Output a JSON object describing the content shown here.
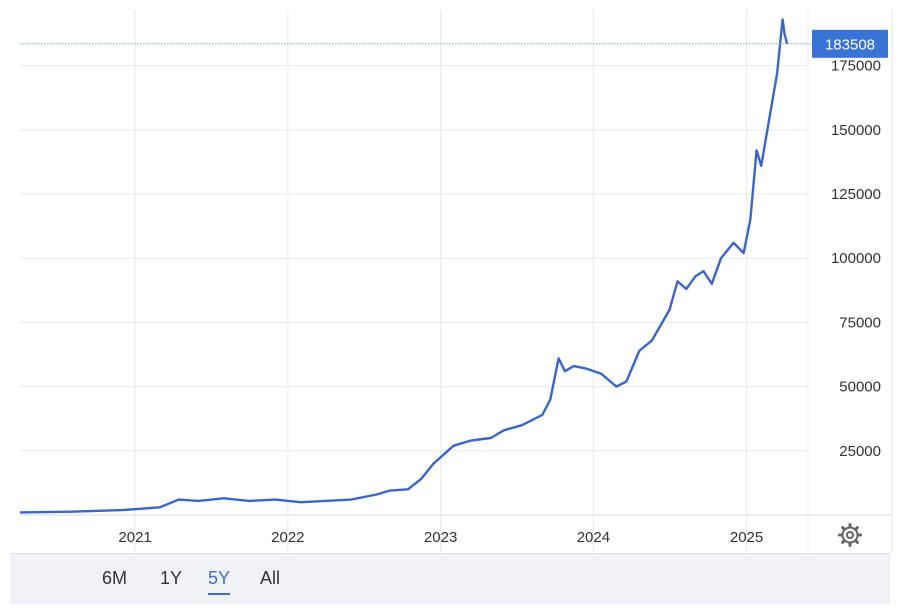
{
  "chart_data": {
    "type": "line",
    "title": "",
    "xlabel": "",
    "ylabel": "",
    "x_ticks": [
      "2021",
      "2022",
      "2023",
      "2024",
      "2025"
    ],
    "y_ticks": [
      "25000",
      "50000",
      "75000",
      "100000",
      "125000",
      "150000",
      "175000"
    ],
    "ylim": [
      0,
      192000
    ],
    "xlim": [
      "2020-04",
      "2025-04"
    ],
    "grid": true,
    "last_value": 183508,
    "last_value_label": "183508",
    "series": [
      {
        "color": "#3a66cc",
        "points": [
          [
            "2020-04-01",
            1000
          ],
          [
            "2020-08-01",
            1300
          ],
          [
            "2020-12-01",
            1900
          ],
          [
            "2021-03-01",
            3000
          ],
          [
            "2021-04-15",
            6000
          ],
          [
            "2021-06-01",
            5500
          ],
          [
            "2021-08-01",
            6500
          ],
          [
            "2021-10-01",
            5500
          ],
          [
            "2021-12-01",
            6000
          ],
          [
            "2022-02-01",
            5000
          ],
          [
            "2022-04-01",
            5500
          ],
          [
            "2022-06-01",
            6000
          ],
          [
            "2022-08-01",
            8000
          ],
          [
            "2022-09-01",
            9500
          ],
          [
            "2022-10-15",
            10000
          ],
          [
            "2022-11-15",
            14000
          ],
          [
            "2022-12-15",
            20000
          ],
          [
            "2023-02-01",
            27000
          ],
          [
            "2023-03-15",
            29000
          ],
          [
            "2023-05-01",
            30000
          ],
          [
            "2023-06-01",
            33000
          ],
          [
            "2023-07-15",
            35000
          ],
          [
            "2023-09-01",
            39000
          ],
          [
            "2023-09-20",
            45000
          ],
          [
            "2023-10-10",
            61000
          ],
          [
            "2023-10-25",
            56000
          ],
          [
            "2023-11-15",
            58000
          ],
          [
            "2023-12-15",
            57000
          ],
          [
            "2024-01-20",
            55000
          ],
          [
            "2024-02-25",
            50000
          ],
          [
            "2024-03-20",
            52000
          ],
          [
            "2024-04-20",
            64000
          ],
          [
            "2024-05-20",
            68000
          ],
          [
            "2024-07-01",
            80000
          ],
          [
            "2024-07-20",
            91000
          ],
          [
            "2024-08-10",
            88000
          ],
          [
            "2024-09-01",
            93000
          ],
          [
            "2024-09-20",
            95000
          ],
          [
            "2024-10-10",
            90000
          ],
          [
            "2024-11-01",
            100000
          ],
          [
            "2024-12-01",
            106000
          ],
          [
            "2024-12-25",
            102000
          ],
          [
            "2025-01-10",
            115000
          ],
          [
            "2025-01-25",
            142000
          ],
          [
            "2025-02-05",
            136000
          ],
          [
            "2025-02-25",
            155000
          ],
          [
            "2025-03-15",
            172000
          ],
          [
            "2025-03-28",
            193000
          ],
          [
            "2025-04-02",
            187000
          ],
          [
            "2025-04-08",
            183508
          ]
        ]
      }
    ]
  },
  "range_selector": {
    "options": [
      "6M",
      "1Y",
      "5Y",
      "All"
    ],
    "selected": "5Y"
  },
  "settings_icon": "gear-icon"
}
